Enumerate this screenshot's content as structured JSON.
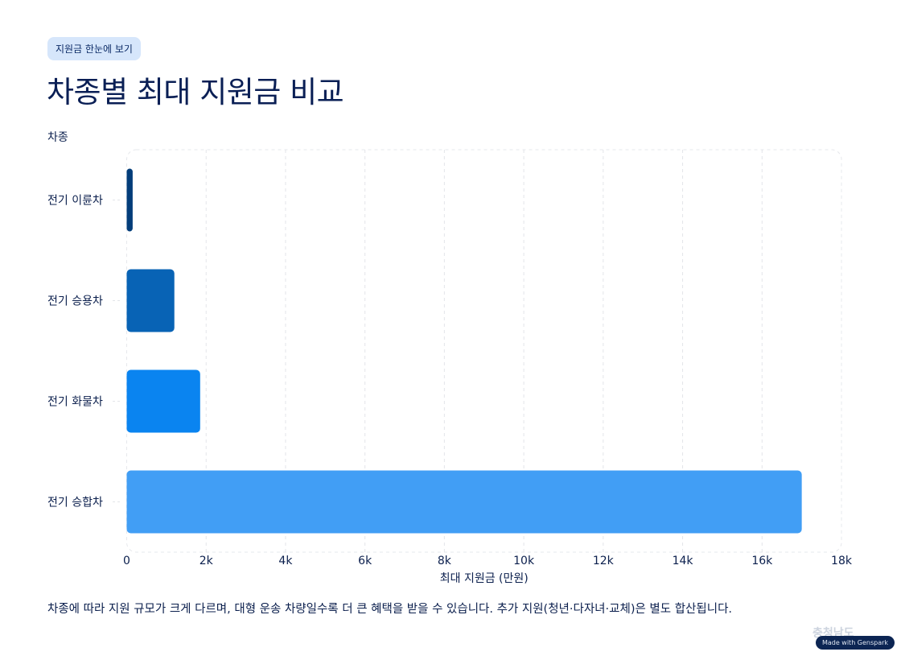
{
  "header": {
    "badge": "지원금 한눈에 보기",
    "title": "차종별 최대 지원금 비교"
  },
  "chart_data": {
    "type": "bar",
    "orientation": "horizontal",
    "categories": [
      "전기 이륜차",
      "전기 승용차",
      "전기 화물차",
      "전기 승합차"
    ],
    "values": [
      150,
      1200,
      1850,
      17000
    ],
    "colors": [
      "#033d7a",
      "#0863b5",
      "#0a84f0",
      "#419ef5"
    ],
    "xlabel": "최대 지원금 (만원)",
    "ylabel": "차종",
    "xlim": [
      0,
      18000
    ],
    "xticks": [
      0,
      2000,
      4000,
      6000,
      8000,
      10000,
      12000,
      14000,
      16000,
      18000
    ],
    "xtick_labels": [
      "0",
      "2k",
      "4k",
      "6k",
      "8k",
      "10k",
      "12k",
      "14k",
      "16k",
      "18k"
    ],
    "grid": true
  },
  "caption": "차종에 따라 지원 규모가 크게 다르며, 대형 운송 차량일수록 더 큰 혜택을 받을 수 있습니다. 추가 지원(청년·다자녀·교체)은 별도 합산됩니다.",
  "footer": {
    "logo_text": "충청남도",
    "made_with": "Made with Genspark"
  }
}
